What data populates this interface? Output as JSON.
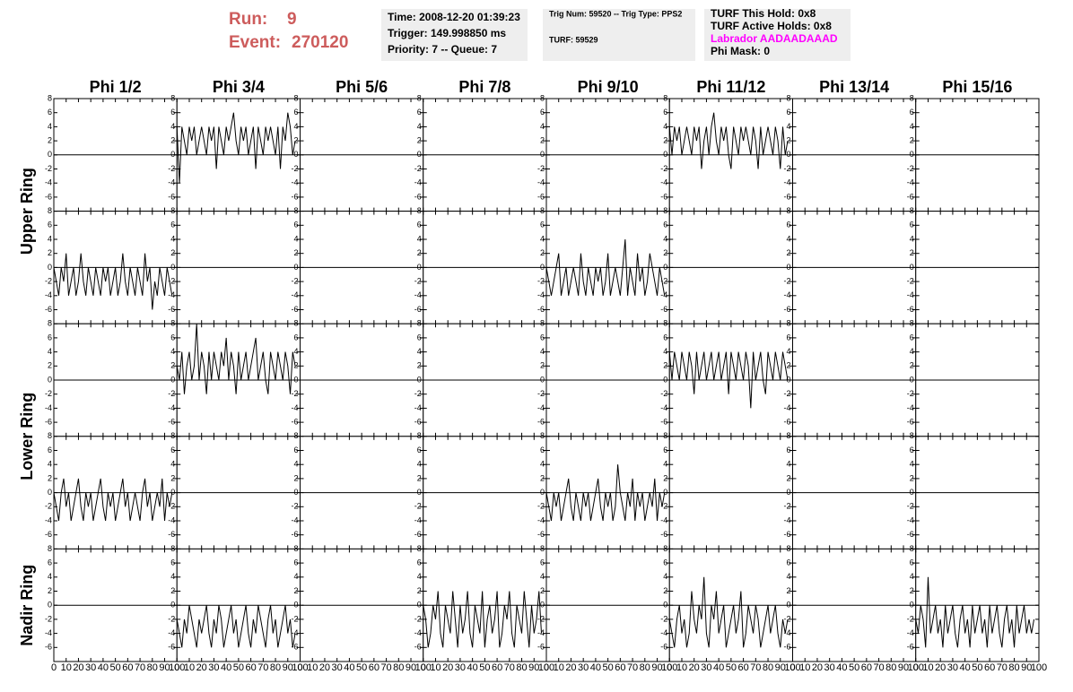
{
  "header": {
    "run_label": "Run:",
    "run": "9",
    "event_label": "Event:",
    "event": "270120",
    "info": [
      [
        "Time: 2008-12-20 01:39:23",
        "Trigger: 149.998850 ms",
        "Priority: 7 -- Queue: 7"
      ],
      [
        "Trig Num: 59520 -- Trig Type: PPS2",
        "TURF: 59529"
      ],
      [
        "TURF This Hold: 0x8",
        "TURF Active Holds: 0x8",
        "Labrador AADAADAAAD",
        "Phi Mask: 0"
      ]
    ]
  },
  "chart_data": {
    "type": "line",
    "columns": [
      "Phi 1/2",
      "Phi 3/4",
      "Phi 5/6",
      "Phi 7/8",
      "Phi 9/10",
      "Phi 11/12",
      "Phi 13/14",
      "Phi 15/16"
    ],
    "rings": [
      "Upper Ring",
      "Lower Ring",
      "Nadir Ring"
    ],
    "xlim": [
      0,
      100
    ],
    "xticks": [
      0,
      10,
      20,
      30,
      40,
      50,
      60,
      70,
      80,
      90,
      100
    ],
    "ylim": [
      -8,
      8
    ],
    "yticks": [
      -6,
      -4,
      -2,
      0,
      2,
      4,
      6,
      8
    ],
    "color": "#000000",
    "x": [
      0,
      2,
      4,
      6,
      8,
      10,
      12,
      14,
      16,
      18,
      20,
      22,
      24,
      26,
      28,
      30,
      32,
      34,
      36,
      38,
      40,
      42,
      44,
      46,
      48,
      50,
      52,
      54,
      56,
      58,
      60,
      62,
      64,
      66,
      68,
      70,
      72,
      74,
      76,
      78,
      80,
      82,
      84,
      86,
      88,
      90,
      92,
      94,
      96
    ],
    "panels": [
      [
        [],
        [
          4,
          -4,
          4,
          2,
          0,
          4,
          2,
          4,
          0,
          2,
          4,
          2,
          0,
          4,
          2,
          4,
          -2,
          4,
          2,
          0,
          4,
          2,
          4,
          6,
          2,
          0,
          4,
          2,
          4,
          0,
          2,
          4,
          -2,
          4,
          2,
          0,
          4,
          2,
          4,
          2,
          0,
          4,
          -2,
          4,
          2,
          6,
          4,
          0,
          2
        ],
        [],
        [],
        [],
        [
          4,
          0,
          4,
          2,
          4,
          0,
          2,
          4,
          2,
          0,
          4,
          2,
          4,
          -2,
          2,
          4,
          0,
          4,
          6,
          2,
          0,
          4,
          2,
          4,
          0,
          -2,
          4,
          2,
          0,
          4,
          2,
          4,
          2,
          0,
          4,
          2,
          -2,
          4,
          0,
          2,
          4,
          2,
          0,
          4,
          2,
          -2,
          4,
          0,
          2
        ],
        [],
        []
      ],
      [
        [
          0,
          -2,
          -4,
          0,
          -2,
          2,
          -4,
          -2,
          0,
          -4,
          -2,
          2,
          -2,
          -4,
          0,
          -2,
          -4,
          0,
          -2,
          -4,
          0,
          -2,
          0,
          -4,
          -2,
          0,
          -4,
          -2,
          2,
          -2,
          -4,
          0,
          -2,
          -4,
          0,
          -2,
          -4,
          2,
          -2,
          0,
          -6,
          -2,
          -4,
          0,
          -2,
          -4,
          0,
          -2,
          -4
        ],
        [],
        [],
        [],
        [
          0,
          -2,
          -4,
          -2,
          0,
          2,
          -4,
          -2,
          0,
          -4,
          -2,
          0,
          -2,
          -4,
          2,
          -2,
          -4,
          0,
          -2,
          -4,
          0,
          -2,
          0,
          -4,
          -2,
          2,
          -4,
          -2,
          0,
          -2,
          -4,
          0,
          4,
          -4,
          0,
          -2,
          -4,
          2,
          -2,
          0,
          -4,
          -2,
          2,
          0,
          -2,
          -4,
          0,
          -2,
          -4
        ],
        [],
        [],
        []
      ],
      [
        [],
        [
          2,
          0,
          4,
          -2,
          2,
          4,
          0,
          2,
          8,
          0,
          4,
          2,
          -2,
          4,
          0,
          4,
          2,
          0,
          4,
          2,
          6,
          0,
          4,
          2,
          -2,
          4,
          0,
          2,
          4,
          0,
          2,
          4,
          6,
          0,
          2,
          4,
          0,
          -2,
          4,
          2,
          0,
          4,
          2,
          0,
          4,
          2,
          -2,
          4,
          2
        ],
        [],
        [],
        [],
        [
          4,
          0,
          4,
          2,
          0,
          4,
          2,
          0,
          4,
          2,
          -2,
          4,
          0,
          2,
          4,
          0,
          2,
          4,
          0,
          2,
          4,
          0,
          2,
          4,
          -2,
          4,
          2,
          0,
          4,
          2,
          0,
          4,
          2,
          -4,
          4,
          0,
          2,
          4,
          0,
          -2,
          4,
          2,
          0,
          4,
          2,
          0,
          4,
          2,
          0
        ],
        [],
        []
      ],
      [
        [
          0,
          -2,
          -4,
          0,
          2,
          -2,
          0,
          -4,
          -2,
          0,
          2,
          -2,
          -4,
          0,
          -2,
          0,
          -4,
          -2,
          0,
          2,
          -2,
          -4,
          0,
          -2,
          0,
          -4,
          -2,
          0,
          2,
          -2,
          0,
          -4,
          -2,
          0,
          -2,
          -4,
          0,
          2,
          -2,
          0,
          -4,
          -2,
          0,
          -2,
          2,
          -4,
          0,
          -2,
          0
        ],
        [],
        [],
        [],
        [
          0,
          -2,
          -4,
          0,
          -2,
          0,
          -4,
          -2,
          0,
          2,
          -2,
          -4,
          0,
          -2,
          -4,
          0,
          -2,
          0,
          -4,
          -2,
          0,
          2,
          -2,
          -4,
          0,
          -2,
          0,
          -4,
          -2,
          4,
          0,
          -2,
          -4,
          0,
          -2,
          2,
          -4,
          0,
          -2,
          0,
          -4,
          -2,
          0,
          -2,
          2,
          -4,
          0,
          -2,
          0
        ],
        [],
        [],
        []
      ],
      [
        [],
        [
          -2,
          -4,
          -6,
          -2,
          -4,
          0,
          -2,
          -4,
          -6,
          -2,
          -4,
          -2,
          0,
          -4,
          -6,
          -2,
          -4,
          0,
          -2,
          -6,
          -4,
          -2,
          0,
          -4,
          -2,
          -6,
          -4,
          -2,
          0,
          -4,
          -6,
          -2,
          -4,
          0,
          -2,
          -4,
          -6,
          -2,
          0,
          -4,
          -2,
          -6,
          -4,
          -2,
          0,
          -4,
          -2,
          -6,
          -4
        ],
        [],
        [
          0,
          -2,
          -6,
          -4,
          0,
          -2,
          2,
          -4,
          -6,
          0,
          -2,
          -4,
          2,
          -2,
          -6,
          0,
          -4,
          -2,
          2,
          -4,
          -6,
          0,
          -2,
          -4,
          2,
          -6,
          -2,
          0,
          -4,
          -2,
          2,
          -6,
          -4,
          0,
          -2,
          2,
          -4,
          -6,
          0,
          -2,
          -4,
          2,
          -2,
          -6,
          0,
          -4,
          -2,
          2,
          -4
        ],
        [],
        [
          -2,
          -4,
          -6,
          -2,
          0,
          -4,
          -2,
          -6,
          -4,
          2,
          -2,
          -4,
          0,
          -2,
          4,
          -4,
          -6,
          0,
          -2,
          2,
          -4,
          -2,
          0,
          -6,
          -4,
          -2,
          0,
          -4,
          -2,
          2,
          -6,
          -4,
          0,
          -2,
          -4,
          0,
          -2,
          -6,
          -4,
          -2,
          0,
          -4,
          -2,
          0,
          -4,
          -6,
          -2,
          -4,
          -2
        ],
        [],
        [
          -2,
          -4,
          0,
          -2,
          -6,
          4,
          -4,
          -2,
          0,
          -4,
          -2,
          -6,
          0,
          -4,
          -2,
          0,
          -4,
          -6,
          -2,
          0,
          -4,
          -2,
          -6,
          0,
          -4,
          -2,
          0,
          -4,
          -2,
          -6,
          0,
          -4,
          -2,
          0,
          -4,
          -6,
          -2,
          0,
          -4,
          -2,
          -6,
          0,
          -4,
          -2,
          0,
          -4,
          -2,
          -4,
          -2
        ]
      ]
    ]
  }
}
